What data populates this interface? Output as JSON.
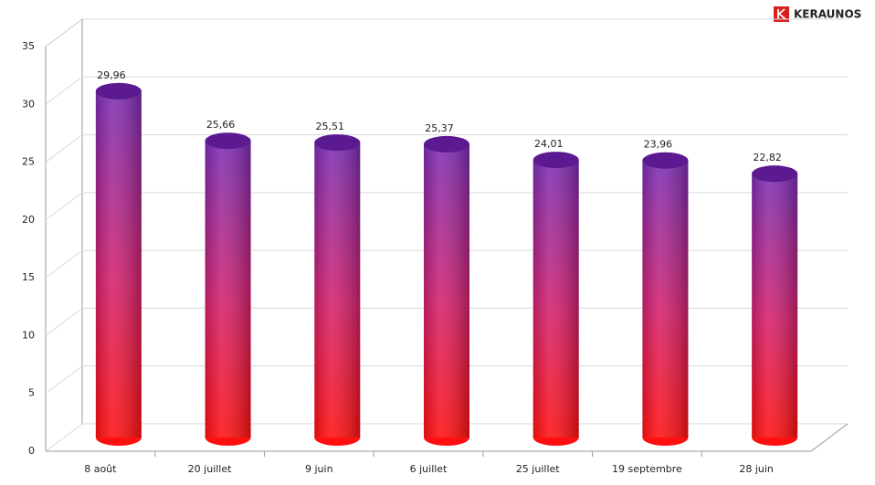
{
  "chart_data": {
    "type": "bar",
    "brand": "KERAUNOS",
    "categories": [
      "8 août",
      "20 juillet",
      "9 juin",
      "6 juillet",
      "25 juillet",
      "19 septembre",
      "28 juin"
    ],
    "values": [
      29.96,
      25.66,
      25.51,
      25.37,
      24.01,
      23.96,
      22.82
    ],
    "value_labels": [
      "29,96",
      "25,66",
      "25,51",
      "25,37",
      "24,01",
      "23,96",
      "22,82"
    ],
    "ylim": [
      0,
      35
    ],
    "yticks": [
      0,
      5,
      10,
      15,
      20,
      25,
      30,
      35
    ],
    "grid": true,
    "colors": [
      "#7a2db5",
      "#d4206c",
      "#ff1010"
    ],
    "top_color": "#5c1a90"
  }
}
